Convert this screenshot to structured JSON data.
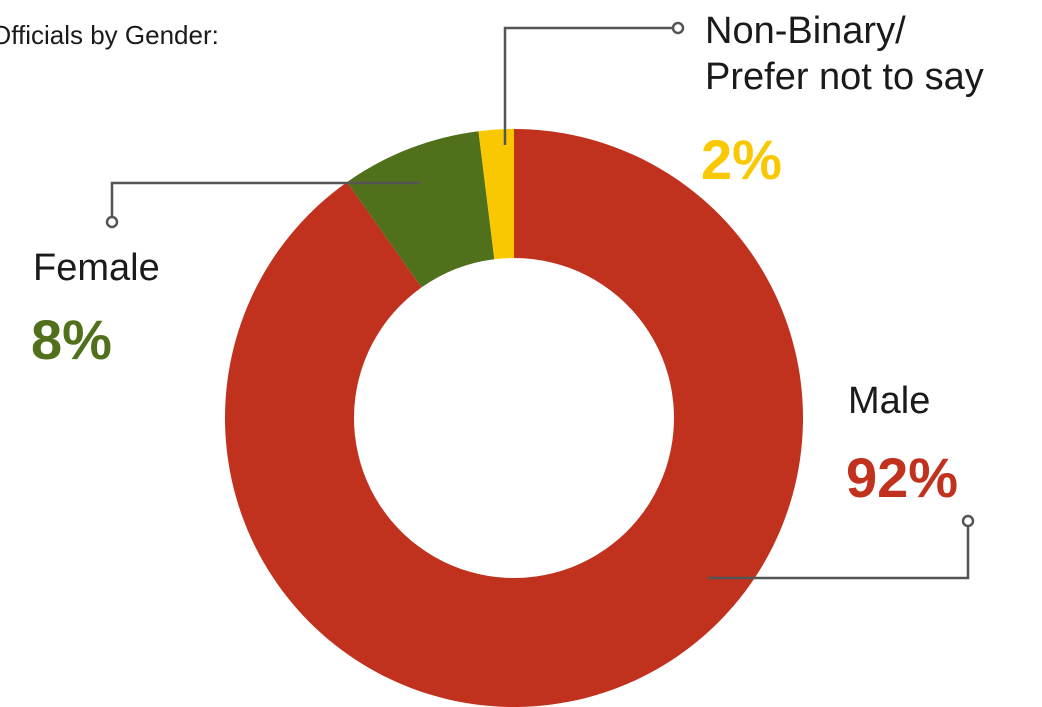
{
  "chart_data": {
    "type": "donut",
    "title": "Officials by Gender:",
    "categories": [
      "Male",
      "Female",
      "Non-Binary/\nPrefer not to say"
    ],
    "values": [
      92,
      8,
      2
    ],
    "value_labels": [
      "92%",
      "8%",
      "2%"
    ],
    "colors": [
      "#c0311e",
      "#50701b",
      "#f9c800"
    ]
  }
}
